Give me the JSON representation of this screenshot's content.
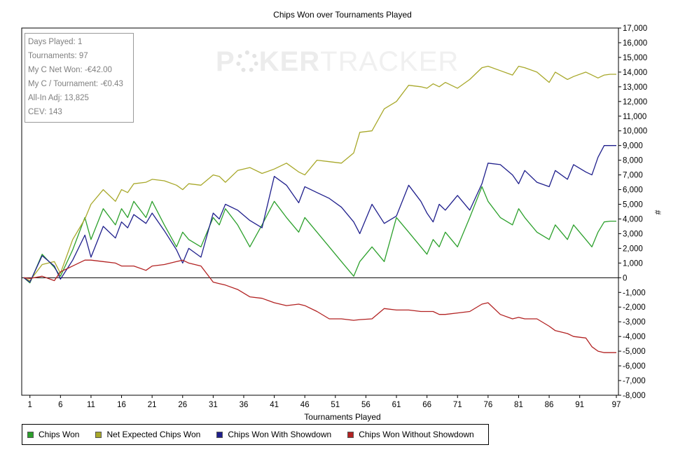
{
  "chart_data": {
    "type": "line",
    "title": "Chips Won over Tournaments Played",
    "xlabel": "Tournaments Played",
    "ylabel": "#",
    "xlim": [
      1,
      97
    ],
    "ylim": [
      -8000,
      17000
    ],
    "x_ticks": [
      "1",
      "6",
      "11",
      "16",
      "21",
      "26",
      "31",
      "36",
      "41",
      "46",
      "51",
      "56",
      "61",
      "66",
      "71",
      "76",
      "81",
      "86",
      "91",
      "97"
    ],
    "y_ticks": [
      "17,000",
      "16,000",
      "15,000",
      "14,000",
      "13,000",
      "12,000",
      "11,000",
      "10,000",
      "9,000",
      "8,000",
      "7,000",
      "6,000",
      "5,000",
      "4,000",
      "3,000",
      "2,000",
      "1,000",
      "0",
      "-1,000",
      "-2,000",
      "-3,000",
      "-4,000",
      "-5,000",
      "-6,000",
      "-7,000",
      "-8,000"
    ],
    "grid": false,
    "legend_position": "bottom-left",
    "stats": [
      "Days Played: 1",
      "Tournaments: 97",
      "My C Net Won: -€42.00",
      "My C / Tournament: -€0.43",
      "All-In Adj: 13,825",
      "CEV: 143"
    ],
    "watermark": {
      "part1": "P",
      "part2": "KER",
      "part3": "TRACKER"
    },
    "series": [
      {
        "name": "Chips Won",
        "color": "#2ca02c",
        "x": [
          0,
          1,
          3,
          5,
          6,
          8,
          10,
          11,
          13,
          15,
          16,
          17,
          18,
          20,
          21,
          23,
          25,
          26,
          27,
          29,
          31,
          32,
          33,
          35,
          37,
          39,
          41,
          43,
          45,
          46,
          48,
          50,
          52,
          54,
          55,
          57,
          59,
          61,
          63,
          65,
          66,
          67,
          68,
          69,
          71,
          73,
          75,
          76,
          78,
          80,
          81,
          82,
          84,
          86,
          87,
          89,
          90,
          92,
          93,
          94,
          95,
          96,
          97
        ],
        "y": [
          0,
          -350,
          1600,
          700,
          100,
          1900,
          4100,
          2600,
          4700,
          3600,
          4700,
          4100,
          5200,
          4100,
          5200,
          3600,
          2100,
          3100,
          2600,
          2100,
          4100,
          3600,
          4700,
          3600,
          2100,
          3600,
          5200,
          4100,
          3100,
          4100,
          3100,
          2100,
          1100,
          100,
          1100,
          2100,
          1100,
          4100,
          3100,
          2100,
          1600,
          2600,
          2100,
          3100,
          2100,
          4100,
          6200,
          5200,
          4100,
          3600,
          4700,
          4100,
          3100,
          2600,
          3600,
          2600,
          3600,
          2600,
          2100,
          3100,
          3800,
          3850,
          3850
        ]
      },
      {
        "name": "Net Expected Chips Won",
        "color": "#a8a82a",
        "x": [
          0,
          1,
          3,
          5,
          6,
          8,
          10,
          11,
          13,
          15,
          16,
          17,
          18,
          20,
          21,
          23,
          25,
          26,
          27,
          29,
          31,
          32,
          33,
          35,
          37,
          39,
          41,
          43,
          45,
          46,
          48,
          50,
          52,
          54,
          55,
          57,
          59,
          61,
          63,
          65,
          66,
          67,
          68,
          69,
          71,
          73,
          75,
          76,
          78,
          80,
          81,
          82,
          84,
          86,
          87,
          89,
          90,
          92,
          93,
          94,
          95,
          96,
          97
        ],
        "y": [
          0,
          -200,
          900,
          1100,
          300,
          2600,
          4000,
          5000,
          6000,
          5200,
          6000,
          5800,
          6400,
          6500,
          6700,
          6600,
          6300,
          6000,
          6400,
          6300,
          7000,
          6900,
          6500,
          7300,
          7500,
          7100,
          7400,
          7800,
          7200,
          7000,
          8000,
          7900,
          7800,
          8500,
          9900,
          10000,
          11500,
          12000,
          13100,
          13000,
          12900,
          13200,
          13000,
          13300,
          12900,
          13500,
          14300,
          14400,
          14100,
          13800,
          14400,
          14300,
          14000,
          13300,
          14000,
          13500,
          13700,
          14000,
          13800,
          13600,
          13800,
          13850,
          13850
        ]
      },
      {
        "name": "Chips Won With Showdown",
        "color": "#1f1f8c",
        "x": [
          0,
          1,
          3,
          5,
          6,
          8,
          10,
          11,
          13,
          15,
          16,
          17,
          18,
          20,
          21,
          23,
          25,
          26,
          27,
          29,
          31,
          32,
          33,
          35,
          37,
          39,
          41,
          43,
          45,
          46,
          48,
          50,
          52,
          54,
          55,
          57,
          59,
          61,
          63,
          65,
          66,
          67,
          68,
          69,
          71,
          73,
          75,
          76,
          78,
          80,
          81,
          82,
          84,
          86,
          87,
          89,
          90,
          92,
          93,
          94,
          95,
          96,
          97
        ],
        "y": [
          0,
          -300,
          1500,
          800,
          -100,
          1200,
          2900,
          1400,
          3500,
          2700,
          3800,
          3400,
          4300,
          3700,
          4400,
          3200,
          1900,
          1000,
          2000,
          1400,
          4400,
          4000,
          5000,
          4600,
          3900,
          3400,
          6900,
          6300,
          5100,
          6200,
          5800,
          5400,
          4800,
          3800,
          3000,
          5000,
          3700,
          4200,
          6300,
          5200,
          4400,
          3800,
          5000,
          4600,
          5600,
          4600,
          6400,
          7800,
          7700,
          7000,
          6400,
          7300,
          6500,
          6200,
          7300,
          6700,
          7700,
          7200,
          7000,
          8200,
          9000,
          9000,
          9000
        ]
      },
      {
        "name": "Chips Won Without Showdown",
        "color": "#b22222",
        "x": [
          0,
          1,
          3,
          5,
          6,
          8,
          10,
          11,
          13,
          15,
          16,
          17,
          18,
          20,
          21,
          23,
          25,
          26,
          27,
          29,
          31,
          32,
          33,
          35,
          37,
          39,
          41,
          43,
          45,
          46,
          48,
          50,
          52,
          54,
          55,
          57,
          59,
          61,
          63,
          65,
          66,
          67,
          68,
          69,
          71,
          73,
          75,
          76,
          78,
          80,
          81,
          82,
          84,
          86,
          87,
          89,
          90,
          92,
          93,
          94,
          95,
          96,
          97
        ],
        "y": [
          0,
          -50,
          100,
          -200,
          400,
          800,
          1200,
          1200,
          1100,
          1000,
          800,
          800,
          800,
          500,
          800,
          900,
          1100,
          1200,
          1000,
          800,
          -300,
          -400,
          -500,
          -800,
          -1300,
          -1400,
          -1700,
          -1900,
          -1800,
          -1900,
          -2300,
          -2800,
          -2800,
          -2900,
          -2850,
          -2800,
          -2100,
          -2200,
          -2200,
          -2300,
          -2300,
          -2300,
          -2500,
          -2500,
          -2400,
          -2300,
          -1800,
          -1700,
          -2500,
          -2800,
          -2700,
          -2800,
          -2800,
          -3300,
          -3600,
          -3800,
          -4000,
          -4100,
          -4700,
          -5000,
          -5100,
          -5100,
          -5100
        ]
      }
    ]
  }
}
